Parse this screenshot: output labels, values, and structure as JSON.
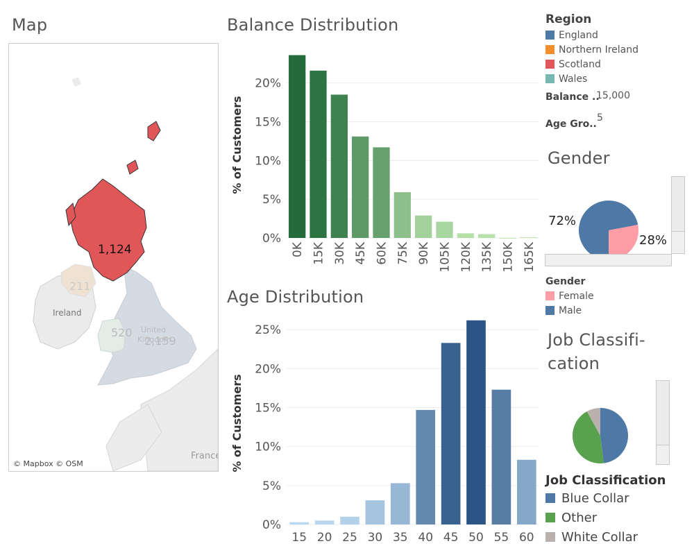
{
  "map": {
    "title": "Map",
    "attribution": "© Mapbox © OSM",
    "labels": {
      "scotland": "1,124",
      "northern_ireland": "211",
      "wales": "520",
      "england": "2,159",
      "ireland": "Ireland",
      "united_kingdom_1": "United",
      "united_kingdom_2": "Kingdom",
      "france": "France"
    },
    "colors": {
      "scotland": "#e15759",
      "land": "#e8e8e8",
      "england": "#d5dbe2",
      "ni": "#efe2d2",
      "wales": "#e4ece8"
    }
  },
  "balance": {
    "title": "Balance Distribution",
    "ylabel": "% of Customers",
    "yticks": [
      "20%",
      "15%",
      "10%",
      "5%",
      "0%"
    ]
  },
  "age": {
    "title": "Age Distribution",
    "ylabel": "% of Customers",
    "yticks": [
      "25%",
      "20%",
      "15%",
      "10%",
      "5%",
      "0%"
    ]
  },
  "region_legend": {
    "title": "Region",
    "items": [
      {
        "label": "England",
        "color": "#4e79a7"
      },
      {
        "label": "Northern Ireland",
        "color": "#f28e2b"
      },
      {
        "label": "Scotland",
        "color": "#e15759"
      },
      {
        "label": "Wales",
        "color": "#76b7b2"
      }
    ]
  },
  "parameters": {
    "balance_label": "Balance ..",
    "balance_value": "15,000",
    "age_label": "Age Gro..",
    "age_value": "5"
  },
  "gender": {
    "title": "Gender",
    "male_label": "72%",
    "female_label": "28%",
    "legend_title": "Gender",
    "legend": [
      {
        "label": "Female",
        "color": "#ff9da7"
      },
      {
        "label": "Male",
        "color": "#4e79a7"
      }
    ]
  },
  "job": {
    "title_line1": "Job Classifi-",
    "title_line2": "cation",
    "legend_title": "Job Classification",
    "legend": [
      {
        "label": "Blue Collar",
        "color": "#4e79a7"
      },
      {
        "label": "Other",
        "color": "#59a14f"
      },
      {
        "label": "White Collar",
        "color": "#bab0ac"
      }
    ]
  },
  "chart_data": [
    {
      "type": "bar",
      "title": "Balance Distribution",
      "ylabel": "% of Customers",
      "categories": [
        "0K",
        "15K",
        "30K",
        "45K",
        "60K",
        "75K",
        "90K",
        "105K",
        "120K",
        "135K",
        "150K",
        "165K"
      ],
      "values": [
        23.6,
        21.6,
        18.5,
        13.1,
        11.7,
        5.9,
        2.9,
        2.1,
        0.6,
        0.5,
        0.0,
        0.1
      ],
      "ylim": [
        0,
        24
      ]
    },
    {
      "type": "bar",
      "title": "Age Distribution",
      "ylabel": "% of Customers",
      "categories": [
        "15",
        "20",
        "25",
        "30",
        "35",
        "40",
        "45",
        "50",
        "55",
        "60"
      ],
      "values": [
        0.3,
        0.5,
        1.0,
        3.1,
        5.3,
        14.7,
        23.3,
        26.2,
        17.3,
        8.3
      ],
      "ylim": [
        0,
        26
      ]
    },
    {
      "type": "pie",
      "title": "Gender",
      "categories": [
        "Male",
        "Female"
      ],
      "values": [
        72,
        28
      ]
    },
    {
      "type": "pie",
      "title": "Job Classification",
      "categories": [
        "Blue Collar",
        "Other",
        "White Collar"
      ],
      "values": [
        48,
        44,
        8
      ]
    }
  ]
}
